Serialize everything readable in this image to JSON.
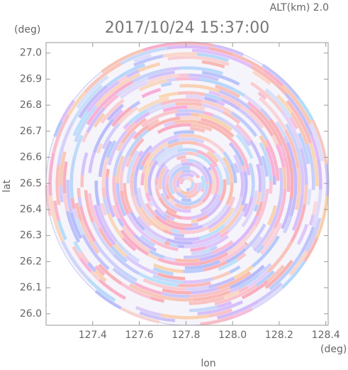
{
  "chart_data": {
    "type": "radar-ppi",
    "title": "2017/10/24 15:37:00",
    "subtitle": "ALT(km) 2.0",
    "x_label": "lon",
    "y_label": "lat",
    "x_unit": "(deg)",
    "y_unit": "(deg)",
    "xlim": [
      127.2,
      128.41
    ],
    "ylim": [
      25.956,
      27.04
    ],
    "xticks": [
      127.4,
      127.6,
      127.8,
      {
        "value": 128.0,
        "label": "128.0"
      },
      128.2,
      128.4
    ],
    "yticks": [
      {
        "value": 26.0,
        "label": "26.0"
      },
      26.1,
      26.2,
      26.3,
      26.4,
      26.5,
      26.6,
      26.7,
      26.8,
      26.9,
      {
        "value": 27.0,
        "label": "27.0"
      }
    ]
  }
}
